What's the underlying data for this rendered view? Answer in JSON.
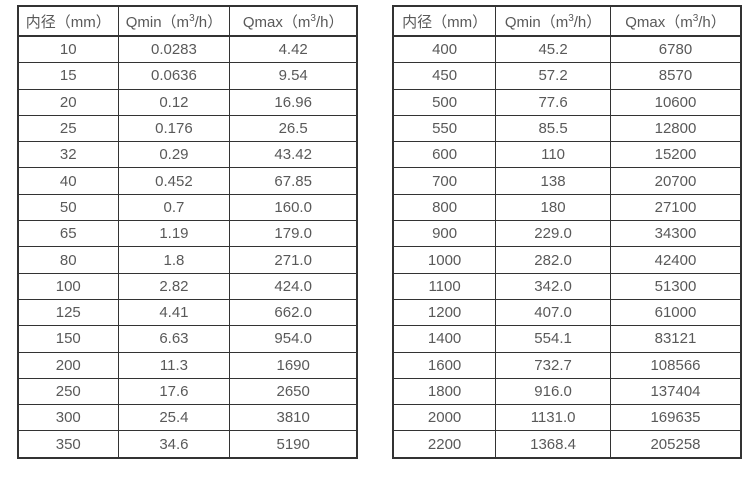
{
  "page": {
    "background": "#ffffff",
    "text_color": "#595959",
    "border_color": "#333333"
  },
  "chart_data": [
    {
      "type": "table",
      "name": "flow-spec-table-small-diameters",
      "columns": [
        "内径（mm）",
        "Qmin（m³/h）",
        "Qmax（m³/h）"
      ],
      "rows": [
        [
          "10",
          "0.0283",
          "4.42"
        ],
        [
          "15",
          "0.0636",
          "9.54"
        ],
        [
          "20",
          "0.12",
          "16.96"
        ],
        [
          "25",
          "0.176",
          "26.5"
        ],
        [
          "32",
          "0.29",
          "43.42"
        ],
        [
          "40",
          "0.452",
          "67.85"
        ],
        [
          "50",
          "0.7",
          "160.0"
        ],
        [
          "65",
          "1.19",
          "179.0"
        ],
        [
          "80",
          "1.8",
          "271.0"
        ],
        [
          "100",
          "2.82",
          "424.0"
        ],
        [
          "125",
          "4.41",
          "662.0"
        ],
        [
          "150",
          "6.63",
          "954.0"
        ],
        [
          "200",
          "11.3",
          "1690"
        ],
        [
          "250",
          "17.6",
          "2650"
        ],
        [
          "300",
          "25.4",
          "3810"
        ],
        [
          "350",
          "34.6",
          "5190"
        ]
      ]
    },
    {
      "type": "table",
      "name": "flow-spec-table-large-diameters",
      "columns": [
        "内径（mm）",
        "Qmin（m³/h）",
        "Qmax（m³/h）"
      ],
      "rows": [
        [
          "400",
          "45.2",
          "6780"
        ],
        [
          "450",
          "57.2",
          "8570"
        ],
        [
          "500",
          "77.6",
          "10600"
        ],
        [
          "550",
          "85.5",
          "12800"
        ],
        [
          "600",
          "110",
          "15200"
        ],
        [
          "700",
          "138",
          "20700"
        ],
        [
          "800",
          "180",
          "27100"
        ],
        [
          "900",
          "229.0",
          "34300"
        ],
        [
          "1000",
          "282.0",
          "42400"
        ],
        [
          "1100",
          "342.0",
          "51300"
        ],
        [
          "1200",
          "407.0",
          "61000"
        ],
        [
          "1400",
          "554.1",
          "83121"
        ],
        [
          "1600",
          "732.7",
          "108566"
        ],
        [
          "1800",
          "916.0",
          "137404"
        ],
        [
          "2000",
          "1131.0",
          "169635"
        ],
        [
          "2200",
          "1368.4",
          "205258"
        ]
      ]
    }
  ]
}
